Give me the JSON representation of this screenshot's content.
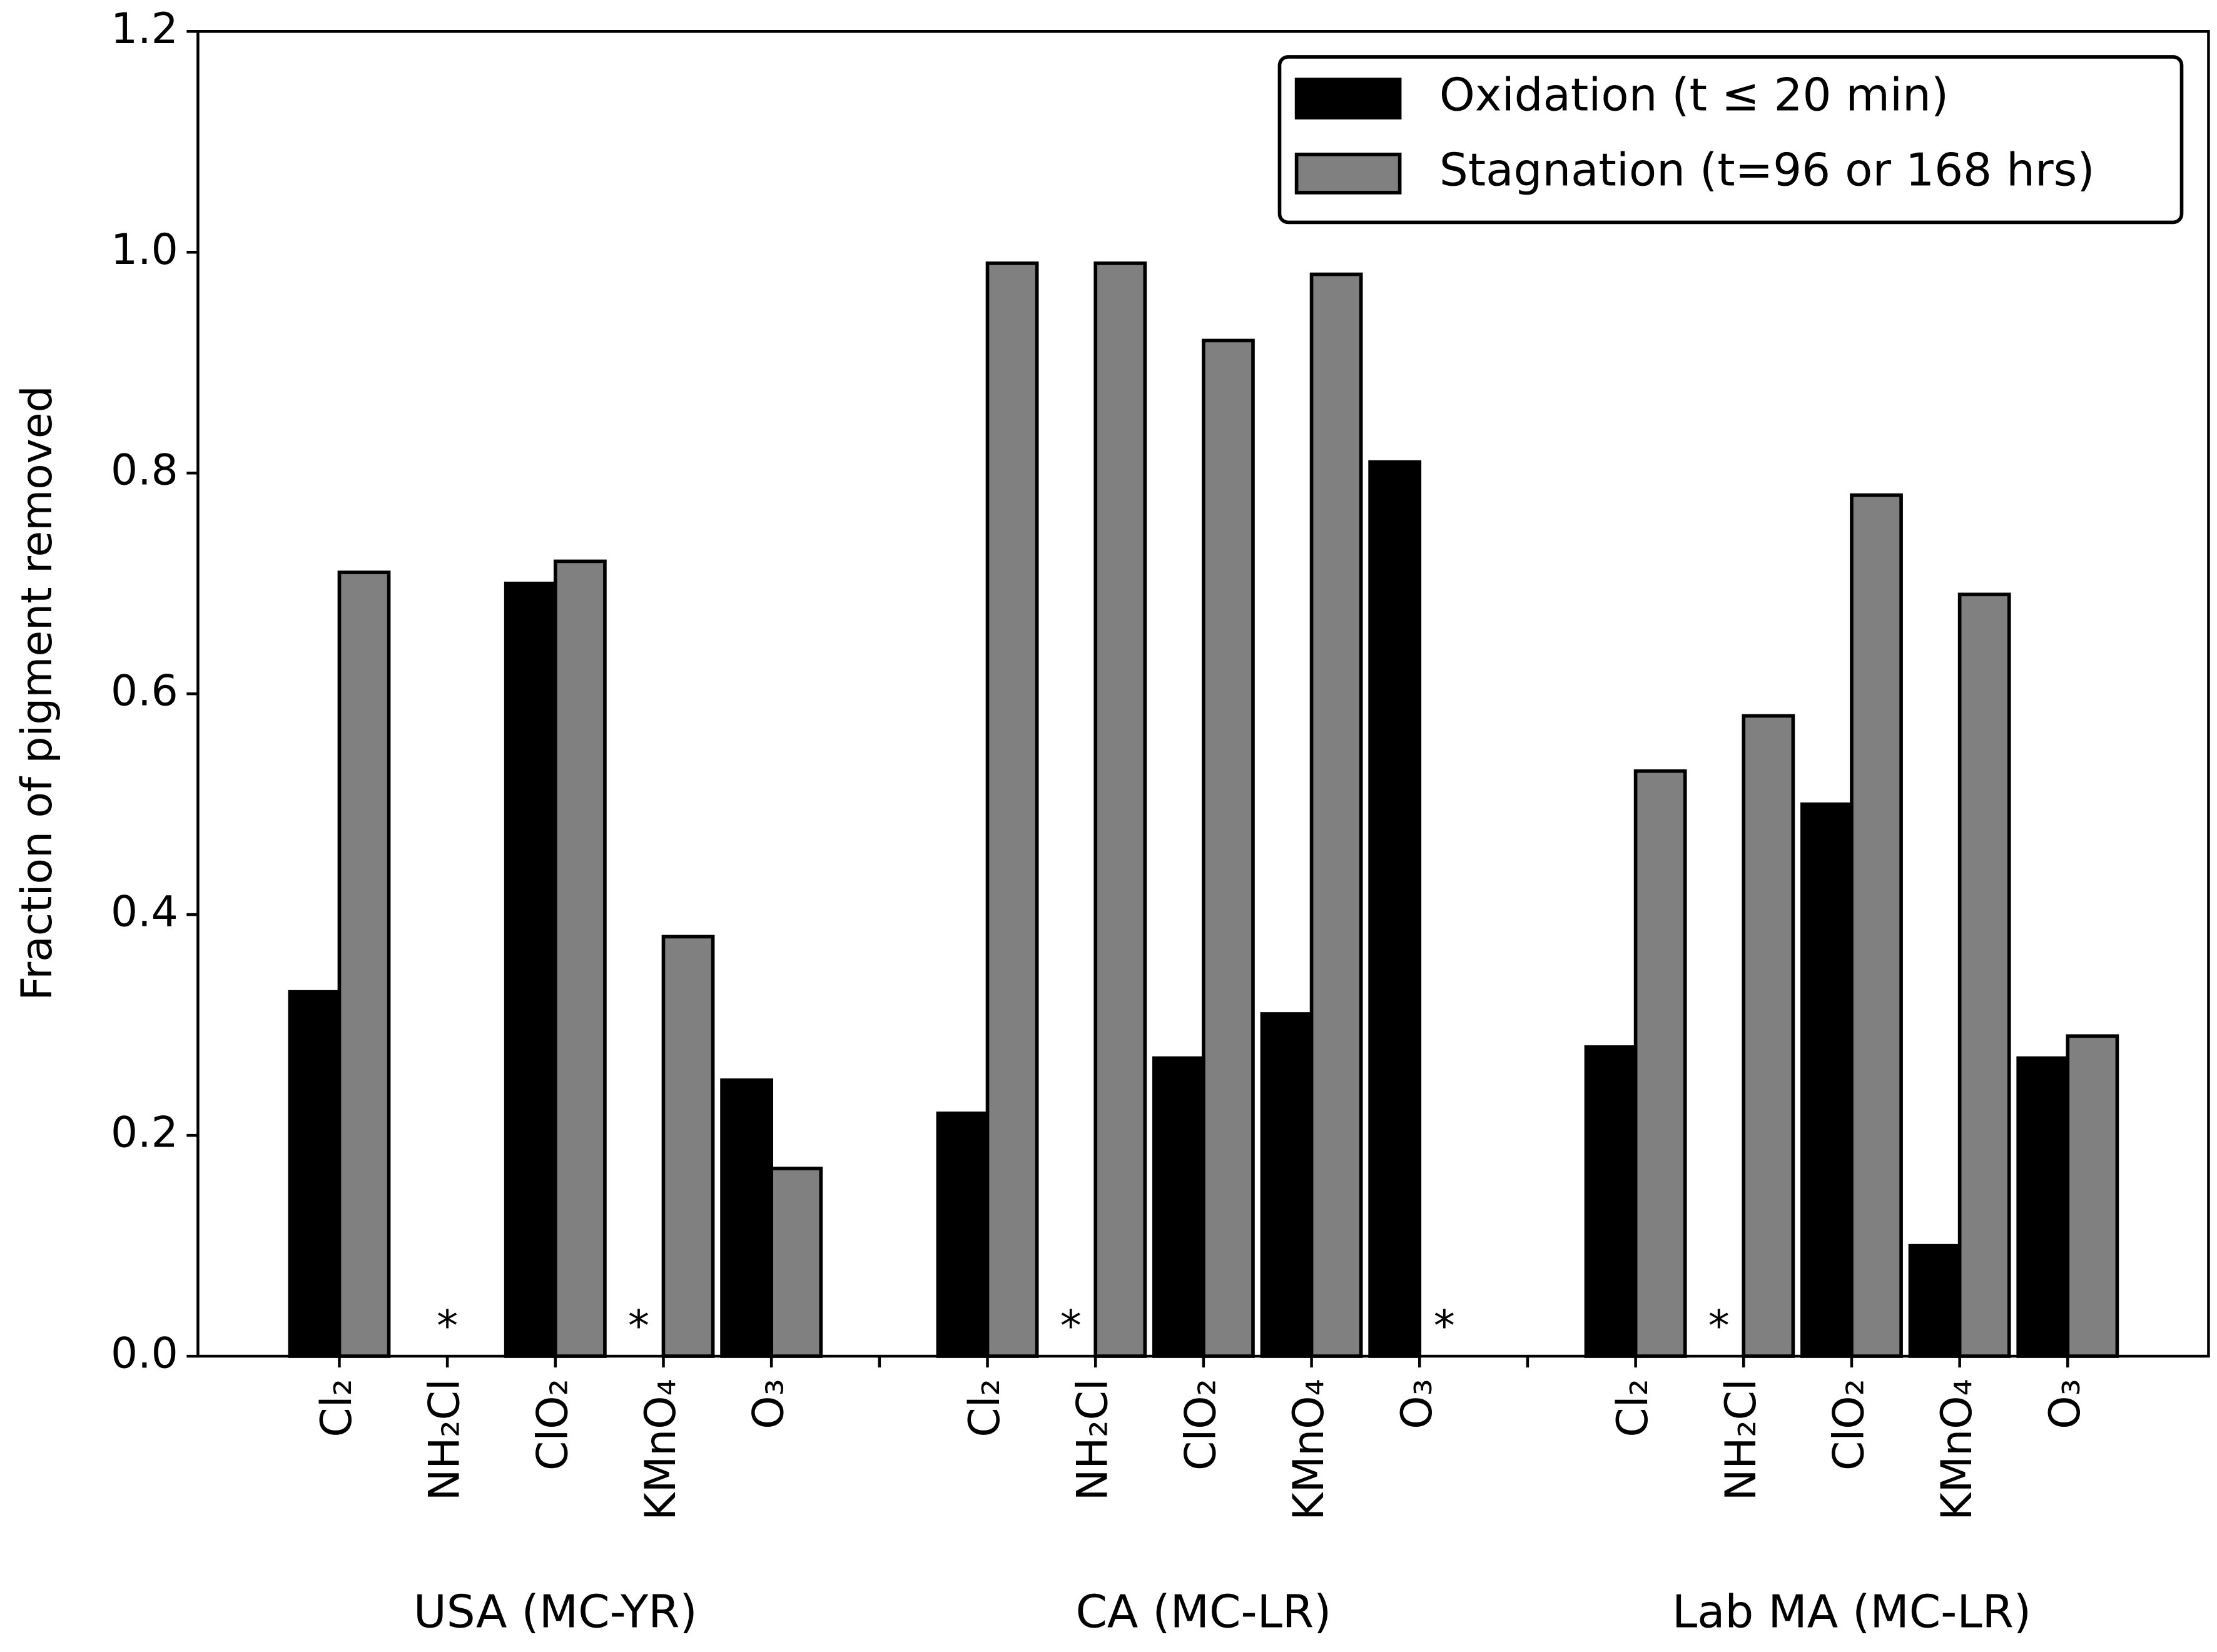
{
  "chart_data": {
    "type": "bar",
    "y_label": "Fraction of pigment removed",
    "categories": [
      "Cl₂",
      "NH₂Cl",
      "ClO₂",
      "KMnO₄",
      "O₃",
      null,
      "Cl₂",
      "NH₂Cl",
      "ClO₂",
      "KMnO₄",
      "O₃",
      null,
      "Cl₂",
      "NH₂Cl",
      "ClO₂",
      "KMnO₄",
      "O₃"
    ],
    "groups": [
      "USA (MC-YR)",
      "CA (MC-LR)",
      "Lab MA (MC-LR)"
    ],
    "series": [
      {
        "name": "Oxidation (t ≤ 20 min)",
        "color": "#000000",
        "values": [
          0.33,
          0,
          0.7,
          0,
          0.25,
          0,
          0.22,
          0,
          0.27,
          0.31,
          0.81,
          0,
          0.28,
          0,
          0.5,
          0.1,
          0.27
        ]
      },
      {
        "name": "Stagnation (t=96 or 168 hrs)",
        "color": "#808080",
        "values": [
          0.71,
          0,
          0.72,
          0.38,
          0.17,
          0,
          0.99,
          0.99,
          0.92,
          0.98,
          0,
          0,
          0.53,
          0.58,
          0.78,
          0.69,
          0.29
        ]
      }
    ],
    "annotations": [
      {
        "text": "*",
        "category": 1
      },
      {
        "text": "*",
        "category": 3,
        "series": 0
      },
      {
        "text": "*",
        "category": 7,
        "series": 0
      },
      {
        "text": "*",
        "category": 10,
        "series": 1
      },
      {
        "text": "*",
        "category": 13,
        "series": 0
      }
    ],
    "ylim": [
      0,
      1.2
    ],
    "yticks": [
      {
        "value": 0,
        "label": "0.0"
      },
      0.2,
      0.4,
      0.6,
      0.8,
      {
        "value": 1,
        "label": "1.0"
      },
      1.2
    ],
    "legend": "upper right",
    "grid": false
  }
}
